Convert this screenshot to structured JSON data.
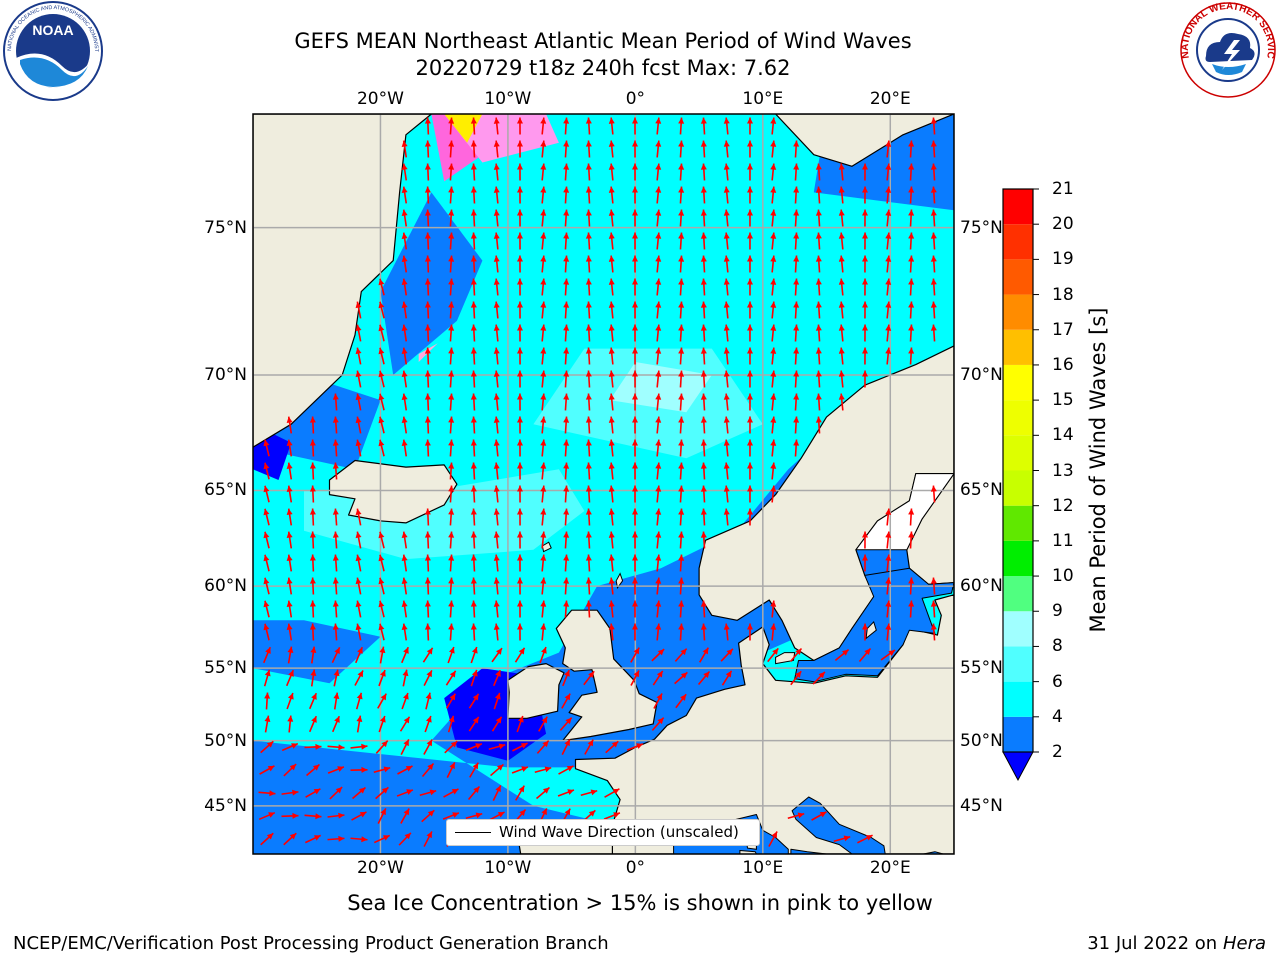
{
  "title": {
    "line1": "GEFS MEAN Northeast Atlantic Mean Period of Wind Waves",
    "line2": "20220729 t18z 240h fcst   Max: 7.62"
  },
  "logos": {
    "left": "noaa-logo",
    "left_text": "NOAA",
    "left_ring": "NATIONAL OCEANIC AND ATMOSPHERIC ADMINISTRATION · U.S. DEPARTMENT OF COMMERCE",
    "right": "national-weather-service-logo",
    "right_ring": "NATIONAL WEATHER SERVICE"
  },
  "map": {
    "lon_range": [
      -30,
      25
    ],
    "lat_range": [
      41,
      78
    ],
    "lon_ticks": [
      {
        "value": -20,
        "label": "20°W"
      },
      {
        "value": -10,
        "label": "10°W"
      },
      {
        "value": 0,
        "label": "0°"
      },
      {
        "value": 10,
        "label": "10°E"
      },
      {
        "value": 20,
        "label": "20°E"
      }
    ],
    "lat_ticks": [
      {
        "value": 45,
        "label": "45°N"
      },
      {
        "value": 50,
        "label": "50°N"
      },
      {
        "value": 55,
        "label": "55°N"
      },
      {
        "value": 60,
        "label": "60°N"
      },
      {
        "value": 65,
        "label": "65°N"
      },
      {
        "value": 70,
        "label": "70°N"
      },
      {
        "value": 75,
        "label": "75°N"
      }
    ],
    "gridlines": true,
    "land_color": "#efedde",
    "arrow_color": "#ff0000",
    "legend": {
      "label": "Wind Wave Direction (unscaled)",
      "placement": "lower-center"
    }
  },
  "colorbar": {
    "label": "Mean Period of Wind Waves [s]",
    "ticks": [
      2,
      4,
      6,
      8,
      9,
      10,
      11,
      12,
      13,
      14,
      15,
      16,
      17,
      18,
      19,
      20,
      21
    ],
    "levels": [
      {
        "from": 2,
        "to": 4,
        "color": "#0a7cff"
      },
      {
        "from": 4,
        "to": 6,
        "color": "#00ffff"
      },
      {
        "from": 6,
        "to": 8,
        "color": "#50ffff"
      },
      {
        "from": 8,
        "to": 9,
        "color": "#a0ffff"
      },
      {
        "from": 9,
        "to": 10,
        "color": "#50ff80"
      },
      {
        "from": 10,
        "to": 11,
        "color": "#00ee00"
      },
      {
        "from": 11,
        "to": 12,
        "color": "#60e800"
      },
      {
        "from": 12,
        "to": 13,
        "color": "#c8ff00"
      },
      {
        "from": 13,
        "to": 14,
        "color": "#ddff00"
      },
      {
        "from": 14,
        "to": 15,
        "color": "#eeff00"
      },
      {
        "from": 15,
        "to": 16,
        "color": "#ffff00"
      },
      {
        "from": 16,
        "to": 17,
        "color": "#ffbf00"
      },
      {
        "from": 17,
        "to": 18,
        "color": "#ff8c00"
      },
      {
        "from": 18,
        "to": 19,
        "color": "#ff5a00"
      },
      {
        "from": 19,
        "to": 20,
        "color": "#ff3000"
      },
      {
        "from": 20,
        "to": 21,
        "color": "#ff0000"
      }
    ],
    "under_color": "#0000ff"
  },
  "footer": {
    "sea_ice_note": "Sea Ice Concentration > 15% is shown in pink to yellow",
    "credit": "NCEP/EMC/Verification Post Processing Product Generation Branch",
    "date": "31 Jul 2022 on",
    "machine": "Hera"
  }
}
